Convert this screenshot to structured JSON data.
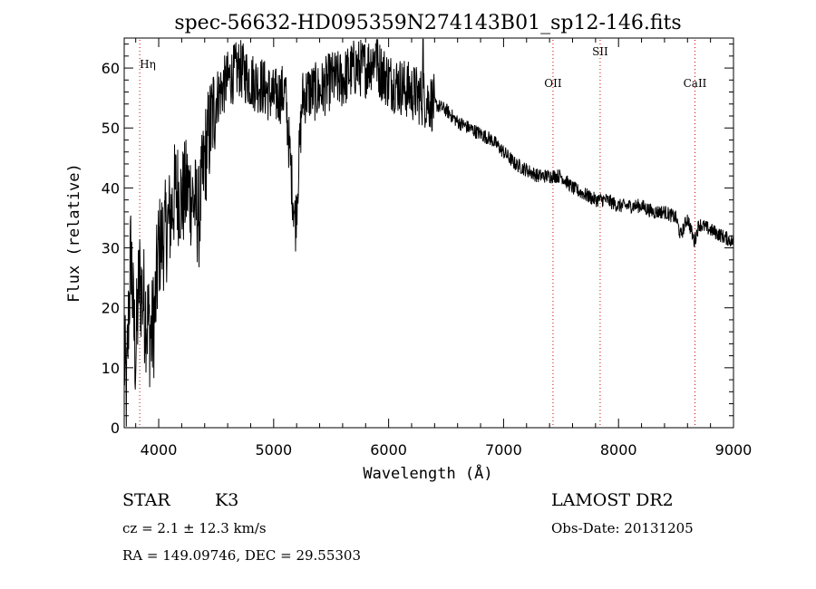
{
  "chart_data": {
    "type": "line",
    "title": "spec-56632-HD095359N274143B01_sp12-146.fits",
    "xlabel": "Wavelength (Å)",
    "ylabel": "Flux (relative)",
    "xlim": [
      3700,
      9000
    ],
    "ylim": [
      0,
      65
    ],
    "x_ticks": [
      4000,
      5000,
      6000,
      7000,
      8000,
      9000
    ],
    "y_ticks": [
      0,
      10,
      20,
      30,
      40,
      50,
      60
    ],
    "grid": false,
    "line_color": "#000000",
    "marker_color": "#cc0000",
    "series_control_points": {
      "x": [
        3700,
        3720,
        3740,
        3760,
        3780,
        3800,
        3830,
        3860,
        3900,
        3940,
        3970,
        4000,
        4050,
        4100,
        4150,
        4200,
        4250,
        4300,
        4350,
        4400,
        4450,
        4500,
        4600,
        4700,
        4800,
        4900,
        5000,
        5100,
        5170,
        5190,
        5250,
        5300,
        5400,
        5500,
        5600,
        5700,
        5800,
        5890,
        5910,
        6000,
        6100,
        6200,
        6300,
        6400,
        6500,
        6600,
        6700,
        6800,
        6900,
        7000,
        7100,
        7200,
        7300,
        7400,
        7500,
        7600,
        7700,
        7800,
        7900,
        8000,
        8100,
        8200,
        8300,
        8400,
        8500,
        8540,
        8600,
        8660,
        8700,
        8800,
        8900,
        9000
      ],
      "y": [
        12,
        5,
        20,
        30,
        18,
        12,
        25,
        22,
        18,
        15,
        20,
        30,
        32,
        35,
        40,
        38,
        40,
        38,
        35,
        45,
        50,
        55,
        58,
        60,
        58,
        57,
        55,
        56,
        38,
        34,
        55,
        56,
        56,
        58,
        58,
        60,
        60,
        62,
        60,
        58,
        57,
        56,
        55,
        54,
        53,
        51,
        50,
        49,
        48,
        46,
        44,
        43,
        42,
        42,
        42,
        40,
        39,
        38,
        38,
        37,
        37,
        37,
        36,
        36,
        35,
        32,
        35,
        31,
        34,
        33,
        32,
        31
      ]
    },
    "annotations": [
      {
        "label": "Hη",
        "x": 3835
      },
      {
        "label": "OII",
        "x": 7430
      },
      {
        "label": "SII",
        "x": 7840
      },
      {
        "label": "CaII",
        "x": 8665
      }
    ]
  },
  "info": {
    "class": "STAR",
    "subclass": "K3",
    "redshift": "cz = 2.1 ± 12.3 km/s",
    "coords": "RA = 149.09746, DEC =  29.55303",
    "survey": "LAMOST DR2",
    "obs_date": "Obs-Date: 20131205"
  }
}
